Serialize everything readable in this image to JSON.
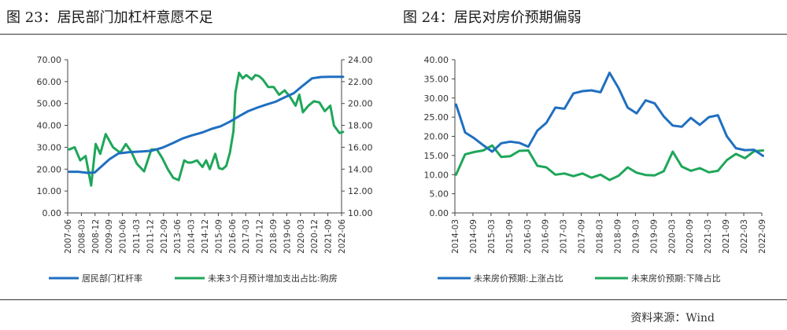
{
  "panels": {
    "left_title": "图 23：居民部门加杠杆意愿不足",
    "right_title": "图 24：居民对房价预期偏弱"
  },
  "source": "资料来源：Wind",
  "chart_data": [
    {
      "type": "line",
      "title": "图 23：居民部门加杠杆意愿不足",
      "x_ticks": [
        "2007-06",
        "2008-03",
        "2008-12",
        "2009-09",
        "2010-06",
        "2011-03",
        "2011-12",
        "2012-09",
        "2013-06",
        "2014-03",
        "2014-12",
        "2015-09",
        "2016-06",
        "2017-03",
        "2017-12",
        "2018-09",
        "2019-06",
        "2020-03",
        "2020-12",
        "2021-09",
        "2022-06"
      ],
      "y_left": {
        "min": 0,
        "max": 70,
        "ticks": [
          "0.00",
          "10.00",
          "20.00",
          "30.00",
          "40.00",
          "50.00",
          "60.00",
          "70.00"
        ]
      },
      "y_right": {
        "min": 10,
        "max": 24,
        "ticks": [
          "10.00",
          "12.00",
          "14.00",
          "16.00",
          "18.00",
          "20.00",
          "22.00",
          "24.00"
        ]
      },
      "series": [
        {
          "name": "居民部门杠杆率",
          "axis": "left",
          "color": "#1f6fc0",
          "x": [
            2007.5,
            2008.0,
            2008.5,
            2008.9,
            2009.3,
            2009.7,
            2010.2,
            2010.8,
            2011.5,
            2012.0,
            2012.6,
            2013.2,
            2013.7,
            2014.2,
            2014.8,
            2015.3,
            2015.8,
            2016.3,
            2016.8,
            2017.3,
            2017.8,
            2018.3,
            2018.8,
            2019.3,
            2019.8,
            2020.3,
            2020.8,
            2021.3,
            2021.8,
            2022.2,
            2022.5
          ],
          "y": [
            18.8,
            18.8,
            18.3,
            18.5,
            21.5,
            24.5,
            27.2,
            27.8,
            28.1,
            28.4,
            29.8,
            32.0,
            34.0,
            35.4,
            36.8,
            38.4,
            39.6,
            41.7,
            44.2,
            46.5,
            48.1,
            49.5,
            50.8,
            52.8,
            54.7,
            58.2,
            61.5,
            62.1,
            62.2,
            62.2,
            62.2
          ]
        },
        {
          "name": "未来3个月预计增加支出占比:购房",
          "axis": "right",
          "color": "#1fa65a",
          "x": [
            2007.5,
            2007.8,
            2008.1,
            2008.4,
            2008.7,
            2008.95,
            2009.2,
            2009.5,
            2009.9,
            2010.3,
            2010.6,
            2010.9,
            2011.2,
            2011.6,
            2012.0,
            2012.3,
            2012.6,
            2012.9,
            2013.2,
            2013.5,
            2013.8,
            2014.0,
            2014.2,
            2014.5,
            2014.8,
            2015.0,
            2015.2,
            2015.5,
            2015.7,
            2015.9,
            2016.1,
            2016.3,
            2016.5,
            2016.6,
            2016.8,
            2017.0,
            2017.2,
            2017.5,
            2017.7,
            2017.9,
            2018.1,
            2018.4,
            2018.7,
            2019.0,
            2019.3,
            2019.6,
            2019.9,
            2020.1,
            2020.3,
            2020.6,
            2020.9,
            2021.2,
            2021.5,
            2021.8,
            2022.0,
            2022.3,
            2022.5
          ],
          "y": [
            15.8,
            16.0,
            14.8,
            15.2,
            12.5,
            16.3,
            15.4,
            17.2,
            16.0,
            15.5,
            16.3,
            15.6,
            14.5,
            13.8,
            15.8,
            15.8,
            15.0,
            14.0,
            13.2,
            13.0,
            14.8,
            14.6,
            14.6,
            14.8,
            14.2,
            14.8,
            14.0,
            15.4,
            14.1,
            14.0,
            14.3,
            15.5,
            17.5,
            21.0,
            22.8,
            22.3,
            22.6,
            22.2,
            22.6,
            22.5,
            22.2,
            21.5,
            21.5,
            20.8,
            21.2,
            20.6,
            19.8,
            20.8,
            19.2,
            19.8,
            20.2,
            20.1,
            19.3,
            19.8,
            18.0,
            17.3,
            17.4
          ]
        }
      ]
    },
    {
      "type": "line",
      "title": "图 24：居民对房价预期偏弱",
      "x_ticks": [
        "2014-03",
        "2014-09",
        "2015-03",
        "2015-09",
        "2016-03",
        "2016-09",
        "2017-03",
        "2017-09",
        "2018-03",
        "2018-09",
        "2019-03",
        "2019-09",
        "2020-03",
        "2020-09",
        "2021-03",
        "2021-09",
        "2022-03",
        "2022-09"
      ],
      "y": {
        "min": 0,
        "max": 40,
        "ticks": [
          "0.00",
          "5.00",
          "10.00",
          "15.00",
          "20.00",
          "25.00",
          "30.00",
          "35.00",
          "40.00"
        ]
      },
      "series": [
        {
          "name": "未来房价预期:上涨占比",
          "color": "#1f6fc0",
          "x": [
            2014.2,
            2014.45,
            2014.7,
            2014.95,
            2015.2,
            2015.45,
            2015.7,
            2015.95,
            2016.2,
            2016.45,
            2016.7,
            2016.95,
            2017.2,
            2017.45,
            2017.7,
            2017.95,
            2018.2,
            2018.45,
            2018.7,
            2018.95,
            2019.2,
            2019.45,
            2019.7,
            2019.95,
            2020.2,
            2020.45,
            2020.7,
            2020.95,
            2021.2,
            2021.45,
            2021.7,
            2021.95,
            2022.2,
            2022.45,
            2022.7
          ],
          "y": [
            28.3,
            21.0,
            19.5,
            17.7,
            16.0,
            18.2,
            18.6,
            18.3,
            17.3,
            21.5,
            23.5,
            27.5,
            27.2,
            31.2,
            31.8,
            32.0,
            31.5,
            36.6,
            32.6,
            27.5,
            26.0,
            29.4,
            28.6,
            25.2,
            22.8,
            22.5,
            24.8,
            23.0,
            25.0,
            25.5,
            20.0,
            16.9,
            16.4,
            16.5,
            14.9
          ]
        },
        {
          "name": "未来房价预期:下降占比",
          "color": "#1fa65a",
          "x": [
            2014.2,
            2014.45,
            2014.7,
            2014.95,
            2015.2,
            2015.45,
            2015.7,
            2015.95,
            2016.2,
            2016.45,
            2016.7,
            2016.95,
            2017.2,
            2017.45,
            2017.7,
            2017.95,
            2018.2,
            2018.45,
            2018.7,
            2018.95,
            2019.2,
            2019.45,
            2019.7,
            2019.95,
            2020.2,
            2020.45,
            2020.7,
            2020.95,
            2021.2,
            2021.45,
            2021.7,
            2021.95,
            2022.2,
            2022.45,
            2022.7
          ],
          "y": [
            10.0,
            15.3,
            15.9,
            16.3,
            17.6,
            14.6,
            14.8,
            16.2,
            16.3,
            12.3,
            11.9,
            10.0,
            10.3,
            9.6,
            10.3,
            9.2,
            10.0,
            8.6,
            9.7,
            11.9,
            10.5,
            9.9,
            9.8,
            10.9,
            16.0,
            12.1,
            11.0,
            11.7,
            10.6,
            11.0,
            13.8,
            15.4,
            14.3,
            16.1,
            16.3
          ]
        }
      ]
    }
  ]
}
